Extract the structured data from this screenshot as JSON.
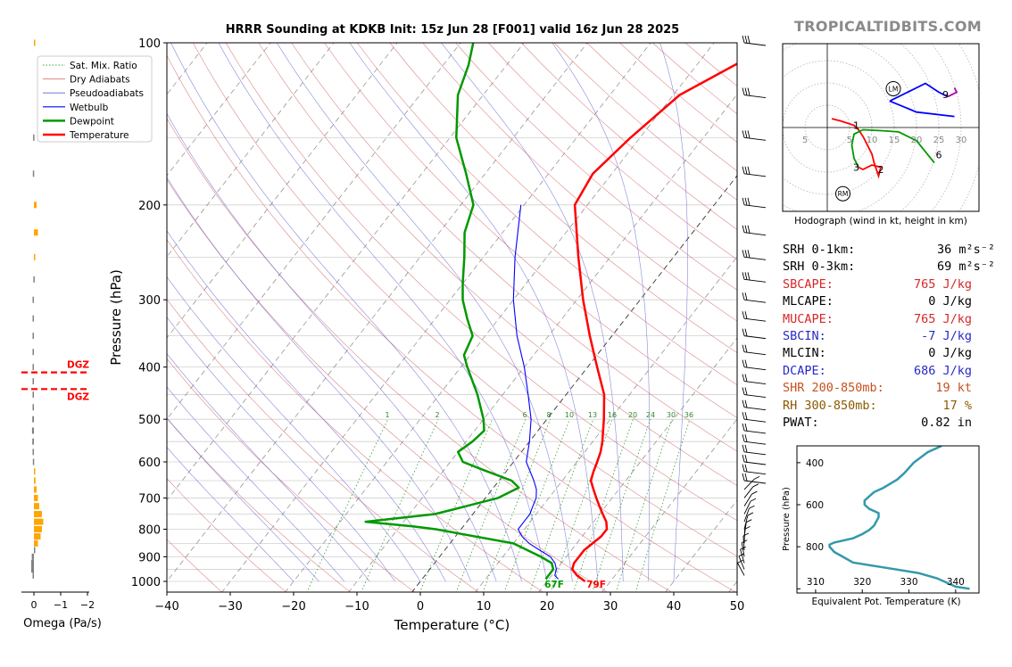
{
  "header": {
    "title": "HRRR Sounding at KDKB Init: 15z Jun 28 [F001] valid 16z Jun 28 2025",
    "brand": "TROPICALTIDBITS.COM"
  },
  "chart_data": [
    {
      "type": "line",
      "kind": "skew-t log-p",
      "xlabel": "Temperature (°C)",
      "ylabel": "Pressure (hPa)",
      "xlim": [
        -40,
        50
      ],
      "ylim": [
        1050,
        100
      ],
      "y_scale": "log",
      "xticks": [
        "−40",
        "−30",
        "−20",
        "−10",
        "0",
        "10",
        "20",
        "30",
        "40",
        "50"
      ],
      "yticks": [
        "100",
        "200",
        "300",
        "400",
        "500",
        "600",
        "700",
        "800",
        "900",
        "1000"
      ],
      "legend_position": "top-left",
      "legend": [
        "Sat. Mix. Ratio",
        "Dry Adiabats",
        "Pseudoadiabats",
        "Wetbulb",
        "Dewpoint",
        "Temperature"
      ],
      "mixing_ratio_labels": [
        "1",
        "2",
        "6",
        "8",
        "10",
        "13",
        "16",
        "20",
        "24",
        "30",
        "36"
      ],
      "surface_labels": {
        "dewpoint": "67F",
        "temperature": "79F"
      },
      "colors": {
        "temperature": "#ff0000",
        "dewpoint": "#009900",
        "wetbulb": "#0000ff",
        "dry_adiabats": "#d06060",
        "pseudoadiabats": "#6060d0",
        "mixing_ratio": "#3a9a3a",
        "dgz": "#ff0000"
      },
      "series": [
        {
          "name": "Temperature",
          "points": [
            [
              1000,
              26.0
            ],
            [
              975,
              24.0
            ],
            [
              950,
              22.5
            ],
            [
              925,
              22.0
            ],
            [
              900,
              22.0
            ],
            [
              875,
              22.0
            ],
            [
              850,
              22.5
            ],
            [
              825,
              23.0
            ],
            [
              800,
              23.0
            ],
            [
              775,
              22.0
            ],
            [
              750,
              20.5
            ],
            [
              725,
              19.0
            ],
            [
              700,
              17.5
            ],
            [
              675,
              16.0
            ],
            [
              650,
              14.5
            ],
            [
              625,
              13.8
            ],
            [
              600,
              13.2
            ],
            [
              575,
              12.5
            ],
            [
              550,
              11.5
            ],
            [
              500,
              9.0
            ],
            [
              450,
              6.0
            ],
            [
              400,
              1.5
            ],
            [
              350,
              -3.5
            ],
            [
              300,
              -9.0
            ],
            [
              250,
              -15.0
            ],
            [
              200,
              -22.0
            ],
            [
              175,
              -23.0
            ],
            [
              150,
              -21.5
            ],
            [
              125,
              -19.0
            ],
            [
              110,
              -14.0
            ],
            [
              100,
              -10.0
            ]
          ]
        },
        {
          "name": "Dewpoint",
          "points": [
            [
              990,
              19.5
            ],
            [
              975,
              19.5
            ],
            [
              950,
              19.5
            ],
            [
              925,
              18.5
            ],
            [
              900,
              16.0
            ],
            [
              850,
              10.0
            ],
            [
              800,
              -4.0
            ],
            [
              790,
              -8.0
            ],
            [
              775,
              -16.0
            ],
            [
              750,
              -6.0
            ],
            [
              725,
              -2.0
            ],
            [
              700,
              2.0
            ],
            [
              670,
              4.0
            ],
            [
              650,
              2.0
            ],
            [
              620,
              -4.0
            ],
            [
              600,
              -8.0
            ],
            [
              575,
              -10.0
            ],
            [
              550,
              -9.0
            ],
            [
              525,
              -8.5
            ],
            [
              500,
              -10.0
            ],
            [
              450,
              -14.0
            ],
            [
              400,
              -19.0
            ],
            [
              380,
              -21.0
            ],
            [
              350,
              -22.0
            ],
            [
              325,
              -25.0
            ],
            [
              300,
              -28.0
            ],
            [
              280,
              -30.0
            ],
            [
              250,
              -33.0
            ],
            [
              225,
              -36.0
            ],
            [
              200,
              -38.0
            ],
            [
              175,
              -43.0
            ],
            [
              150,
              -49.0
            ],
            [
              125,
              -54.0
            ],
            [
              110,
              -56.0
            ],
            [
              100,
              -58.0
            ]
          ]
        },
        {
          "name": "Wetbulb",
          "points": [
            [
              990,
              21.5
            ],
            [
              975,
              20.5
            ],
            [
              950,
              20.0
            ],
            [
              925,
              19.0
            ],
            [
              900,
              17.5
            ],
            [
              875,
              15.0
            ],
            [
              850,
              12.5
            ],
            [
              825,
              10.5
            ],
            [
              800,
              9.0
            ],
            [
              775,
              9.0
            ],
            [
              750,
              9.0
            ],
            [
              725,
              8.5
            ],
            [
              700,
              8.0
            ],
            [
              675,
              7.0
            ],
            [
              650,
              5.5
            ],
            [
              600,
              2.0
            ],
            [
              550,
              0.0
            ],
            [
              500,
              -2.5
            ],
            [
              450,
              -6.0
            ],
            [
              400,
              -10.0
            ],
            [
              350,
              -15.0
            ],
            [
              300,
              -20.0
            ],
            [
              250,
              -25.0
            ],
            [
              200,
              -30.5
            ]
          ]
        }
      ],
      "dgz_label": "DGZ",
      "dgz_pressures": [
        400,
        460
      ]
    },
    {
      "type": "bar",
      "kind": "omega profile",
      "xlabel": "Omega (Pa/s)",
      "xticks": [
        "0",
        "−1",
        "−2"
      ],
      "xlim": [
        0.3,
        -2.3
      ],
      "colors": {
        "upward": "#ffa500",
        "downward": "#808080",
        "dgz": "#ff0000"
      },
      "dgz_label": "DGZ",
      "dgz_pressures": [
        400,
        460
      ],
      "values": [
        [
          100,
          -0.05
        ],
        [
          150,
          0.03
        ],
        [
          175,
          0.04
        ],
        [
          200,
          -0.1
        ],
        [
          225,
          -0.15
        ],
        [
          250,
          -0.05
        ],
        [
          275,
          0.02
        ],
        [
          300,
          0.05
        ],
        [
          325,
          0.05
        ],
        [
          350,
          0.05
        ],
        [
          375,
          0.05
        ],
        [
          400,
          0.05
        ],
        [
          425,
          0.05
        ],
        [
          450,
          0.05
        ],
        [
          475,
          0.05
        ],
        [
          500,
          0.06
        ],
        [
          525,
          0.07
        ],
        [
          550,
          0.06
        ],
        [
          575,
          0.05
        ],
        [
          600,
          0.04
        ],
        [
          625,
          -0.03
        ],
        [
          650,
          -0.06
        ],
        [
          675,
          -0.1
        ],
        [
          700,
          -0.15
        ],
        [
          725,
          -0.2
        ],
        [
          750,
          -0.3
        ],
        [
          775,
          -0.35
        ],
        [
          800,
          -0.3
        ],
        [
          825,
          -0.25
        ],
        [
          850,
          -0.15
        ],
        [
          875,
          0.0
        ],
        [
          900,
          0.08
        ],
        [
          925,
          0.1
        ],
        [
          950,
          0.1
        ],
        [
          975,
          0.05
        ]
      ]
    },
    {
      "type": "line",
      "kind": "hodograph",
      "xlabel": "Hodograph (wind in kt, height in km)",
      "ring_labels": [
        "5",
        "10",
        "15",
        "20",
        "25",
        "30"
      ],
      "storm_motion_labels": [
        "LM",
        "RM"
      ],
      "height_labels": [
        "1",
        "2",
        "3",
        "6",
        "9"
      ],
      "colors": {
        "0-3km": "#ff0000",
        "3-6km": "#009900",
        "6-9km": "#0000ff",
        "9-12km": "#aa00aa"
      },
      "segments": [
        {
          "name": "0-3km",
          "points": [
            [
              1,
              2
            ],
            [
              3,
              1.5
            ],
            [
              6,
              0.5
            ],
            [
              7,
              -0.5
            ],
            [
              8,
              -2
            ],
            [
              9,
              -4
            ],
            [
              10,
              -6
            ],
            [
              10.5,
              -8
            ],
            [
              11,
              -9.5
            ],
            [
              11.5,
              -11
            ],
            [
              12,
              -9
            ],
            [
              10,
              -8.5
            ],
            [
              8,
              -9.5
            ],
            [
              7,
              -9
            ]
          ]
        },
        {
          "name": "3-6km",
          "points": [
            [
              7,
              -9
            ],
            [
              6,
              -7
            ],
            [
              5.5,
              -4
            ],
            [
              6,
              -1.5
            ],
            [
              8,
              -0.5
            ],
            [
              12,
              -0.7
            ],
            [
              16,
              -1
            ],
            [
              20,
              -3
            ],
            [
              24,
              -8
            ]
          ]
        },
        {
          "name": "6-9km",
          "points": [
            [
              14,
              6
            ],
            [
              18,
              8
            ],
            [
              22,
              10
            ],
            [
              25,
              8
            ],
            [
              27,
              7
            ]
          ]
        },
        {
          "name": "9-12km",
          "points": [
            [
              27,
              7
            ],
            [
              29,
              8
            ],
            [
              28.5,
              9
            ]
          ]
        },
        {
          "name": "extra",
          "points": [
            [
              14,
              6
            ],
            [
              20,
              3.5
            ],
            [
              28.5,
              2.5
            ]
          ]
        }
      ],
      "height_positions": {
        "1": [
          6.5,
          0.5
        ],
        "2": [
          12,
          -9.5
        ],
        "3": [
          6.5,
          -9
        ],
        "6": [
          25,
          -6.2
        ],
        "9": [
          26.5,
          7.5
        ]
      },
      "storm_motion": {
        "LM": [
          14.8,
          8.8
        ],
        "RM": [
          3.5,
          -15
        ]
      },
      "xlim": [
        -10,
        34
      ],
      "ylim": [
        -19,
        19
      ]
    },
    {
      "type": "line",
      "kind": "theta-e profile",
      "xlabel": "Equivalent Pot. Temperature (K)",
      "ylabel": "Pressure (hPa)",
      "xticks": [
        "310",
        "320",
        "330",
        "340"
      ],
      "yticks": [
        "400",
        "600",
        "800"
      ],
      "xlim": [
        306,
        345
      ],
      "ylim": [
        1020,
        320
      ],
      "color": "#3399aa",
      "points": [
        [
          1000,
          343
        ],
        [
          990,
          340
        ],
        [
          975,
          338.5
        ],
        [
          950,
          336
        ],
        [
          925,
          332
        ],
        [
          900,
          325
        ],
        [
          875,
          318
        ],
        [
          850,
          316
        ],
        [
          825,
          314
        ],
        [
          800,
          313
        ],
        [
          790,
          313
        ],
        [
          780,
          314
        ],
        [
          760,
          318
        ],
        [
          740,
          320
        ],
        [
          720,
          321.5
        ],
        [
          700,
          322.5
        ],
        [
          680,
          323
        ],
        [
          660,
          323.5
        ],
        [
          640,
          323.5
        ],
        [
          620,
          321.5
        ],
        [
          600,
          320.5
        ],
        [
          580,
          320.5
        ],
        [
          560,
          321.5
        ],
        [
          540,
          322.5
        ],
        [
          520,
          324.5
        ],
        [
          500,
          326
        ],
        [
          480,
          327.5
        ],
        [
          450,
          329
        ],
        [
          400,
          331
        ],
        [
          350,
          334
        ],
        [
          320,
          337
        ]
      ]
    }
  ],
  "params": [
    {
      "label": "SRH 0-1km:",
      "value": "36",
      "unit": "m²s⁻²",
      "color": "#000000"
    },
    {
      "label": "SRH 0-3km:",
      "value": "69",
      "unit": "m²s⁻²",
      "color": "#000000"
    },
    {
      "label": "SBCAPE:",
      "value": "765 J/kg",
      "unit": "",
      "color": "#d62728"
    },
    {
      "label": "MLCAPE:",
      "value": "0 J/kg",
      "unit": "",
      "color": "#000000"
    },
    {
      "label": "MUCAPE:",
      "value": "765 J/kg",
      "unit": "",
      "color": "#d62728"
    },
    {
      "label": "SBCIN:",
      "value": "-7 J/kg",
      "unit": "",
      "color": "#2828c8"
    },
    {
      "label": "MLCIN:",
      "value": "0 J/kg",
      "unit": "",
      "color": "#000000"
    },
    {
      "label": "DCAPE:",
      "value": "686 J/kg",
      "unit": "",
      "color": "#2828c8"
    },
    {
      "label": "SHR 200-850mb:",
      "value": "19 kt",
      "unit": "",
      "color": "#c8501e"
    },
    {
      "label": "RH 300-850mb:",
      "value": "17 %",
      "unit": "",
      "color": "#8b5a00"
    },
    {
      "label": "PWAT:",
      "value": "0.82 in",
      "unit": "",
      "color": "#000000"
    }
  ]
}
